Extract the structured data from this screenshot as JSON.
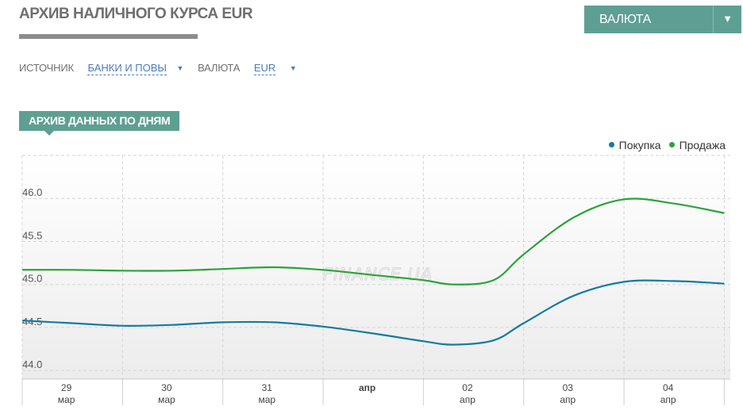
{
  "page": {
    "title": "АРХИВ НАЛИЧНОГО КУРСА EUR"
  },
  "currency_dropdown": {
    "label": "ВАЛЮТА",
    "arrow_icon": "▼"
  },
  "filters": {
    "source_label": "ИСТОЧНИК",
    "source_value": "БАНКИ И ПОВЫ",
    "currency_label": "ВАЛЮТА",
    "currency_value": "EUR",
    "caret": "▼"
  },
  "tab": {
    "label": "АРХИВ ДАННЫХ ПО ДНЯМ"
  },
  "colors": {
    "accent": "#5e9f93",
    "buy": "#137ba3",
    "sell": "#2ba33a",
    "link": "#4a7bbd"
  },
  "chart_data": {
    "type": "line",
    "title": "",
    "xlabel": "",
    "ylabel": "",
    "watermark": "FINANCE.UA",
    "ylim": [
      43.9,
      46.5
    ],
    "yticks": [
      44.0,
      44.5,
      45.0,
      45.5,
      46.0
    ],
    "ytick_labels": [
      "44.0",
      "44.5",
      "45.0",
      "45.5",
      "46.0"
    ],
    "grid": true,
    "legend_position": "top-right",
    "x_range": [
      0,
      7.06
    ],
    "x_ticks": [
      {
        "x": 0.44,
        "day": "29",
        "month": "мар",
        "bold": false
      },
      {
        "x": 1.44,
        "day": "30",
        "month": "мар",
        "bold": false
      },
      {
        "x": 2.44,
        "day": "31",
        "month": "мар",
        "bold": false
      },
      {
        "x": 3.44,
        "day": "апр",
        "month": "",
        "bold": true
      },
      {
        "x": 4.44,
        "day": "02",
        "month": "апр",
        "bold": false
      },
      {
        "x": 5.44,
        "day": "03",
        "month": "апр",
        "bold": false
      },
      {
        "x": 6.44,
        "day": "04",
        "month": "апр",
        "bold": false
      }
    ],
    "x_gridlines": [
      0,
      1,
      2,
      3,
      4,
      5,
      6,
      7
    ],
    "series": [
      {
        "name": "Покупка",
        "color": "#137ba3",
        "points": [
          [
            0.0,
            44.58
          ],
          [
            0.5,
            44.55
          ],
          [
            1.0,
            44.52
          ],
          [
            1.5,
            44.53
          ],
          [
            2.0,
            44.56
          ],
          [
            2.5,
            44.56
          ],
          [
            3.0,
            44.51
          ],
          [
            3.5,
            44.43
          ],
          [
            4.0,
            44.34
          ],
          [
            4.3,
            44.3
          ],
          [
            4.7,
            44.35
          ],
          [
            5.0,
            44.55
          ],
          [
            5.5,
            44.87
          ],
          [
            6.0,
            45.03
          ],
          [
            6.5,
            45.04
          ],
          [
            7.0,
            45.01
          ]
        ]
      },
      {
        "name": "Продажа",
        "color": "#2ba33a",
        "points": [
          [
            0.0,
            45.17
          ],
          [
            0.5,
            45.17
          ],
          [
            1.0,
            45.16
          ],
          [
            1.5,
            45.16
          ],
          [
            2.0,
            45.18
          ],
          [
            2.5,
            45.2
          ],
          [
            3.0,
            45.17
          ],
          [
            3.5,
            45.11
          ],
          [
            4.0,
            45.05
          ],
          [
            4.3,
            45.0
          ],
          [
            4.7,
            45.05
          ],
          [
            5.0,
            45.35
          ],
          [
            5.5,
            45.78
          ],
          [
            6.0,
            45.99
          ],
          [
            6.5,
            45.94
          ],
          [
            7.0,
            45.83
          ]
        ]
      }
    ]
  }
}
